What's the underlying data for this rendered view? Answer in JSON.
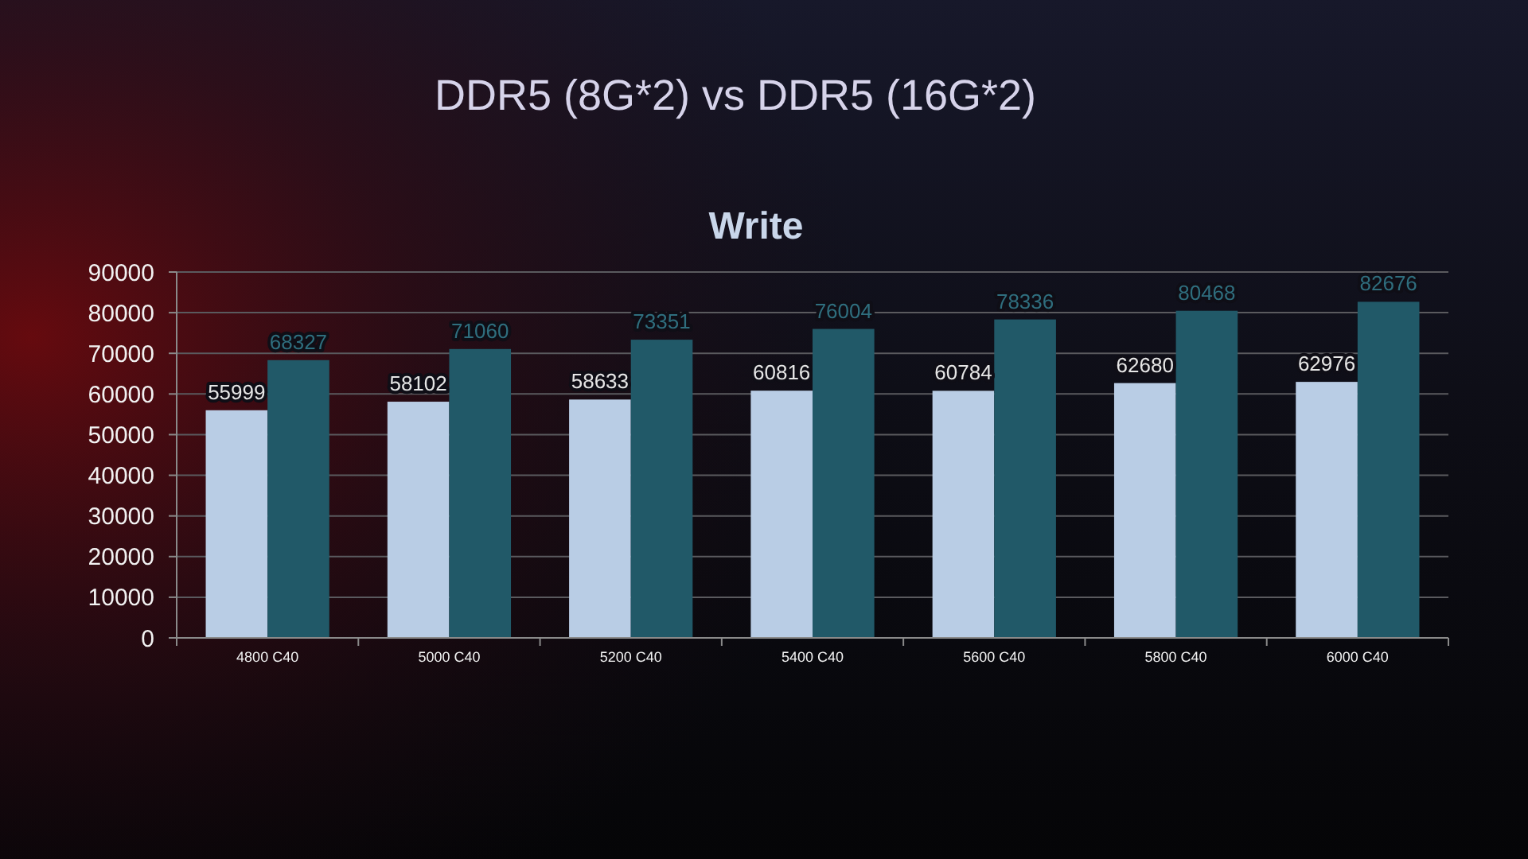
{
  "chart_data": {
    "type": "bar",
    "title": "DDR5 (8G*2) vs DDR5 (16G*2)",
    "subtitle": "Write",
    "categories": [
      "4800 C40",
      "5000 C40",
      "5200 C40",
      "5400 C40",
      "5600 C40",
      "5800 C40",
      "6000 C40"
    ],
    "series": [
      {
        "color": "#b9cde5",
        "values": [
          55999,
          58102,
          58633,
          60816,
          60784,
          62680,
          62976
        ]
      },
      {
        "color": "#215968",
        "values": [
          68327,
          71060,
          73351,
          76004,
          78336,
          80468,
          82676
        ]
      }
    ],
    "ylim": [
      0,
      90000
    ],
    "yticks": [
      0,
      10000,
      20000,
      30000,
      40000,
      50000,
      60000,
      70000,
      80000,
      90000
    ],
    "grid": "y",
    "data_labels": true
  }
}
